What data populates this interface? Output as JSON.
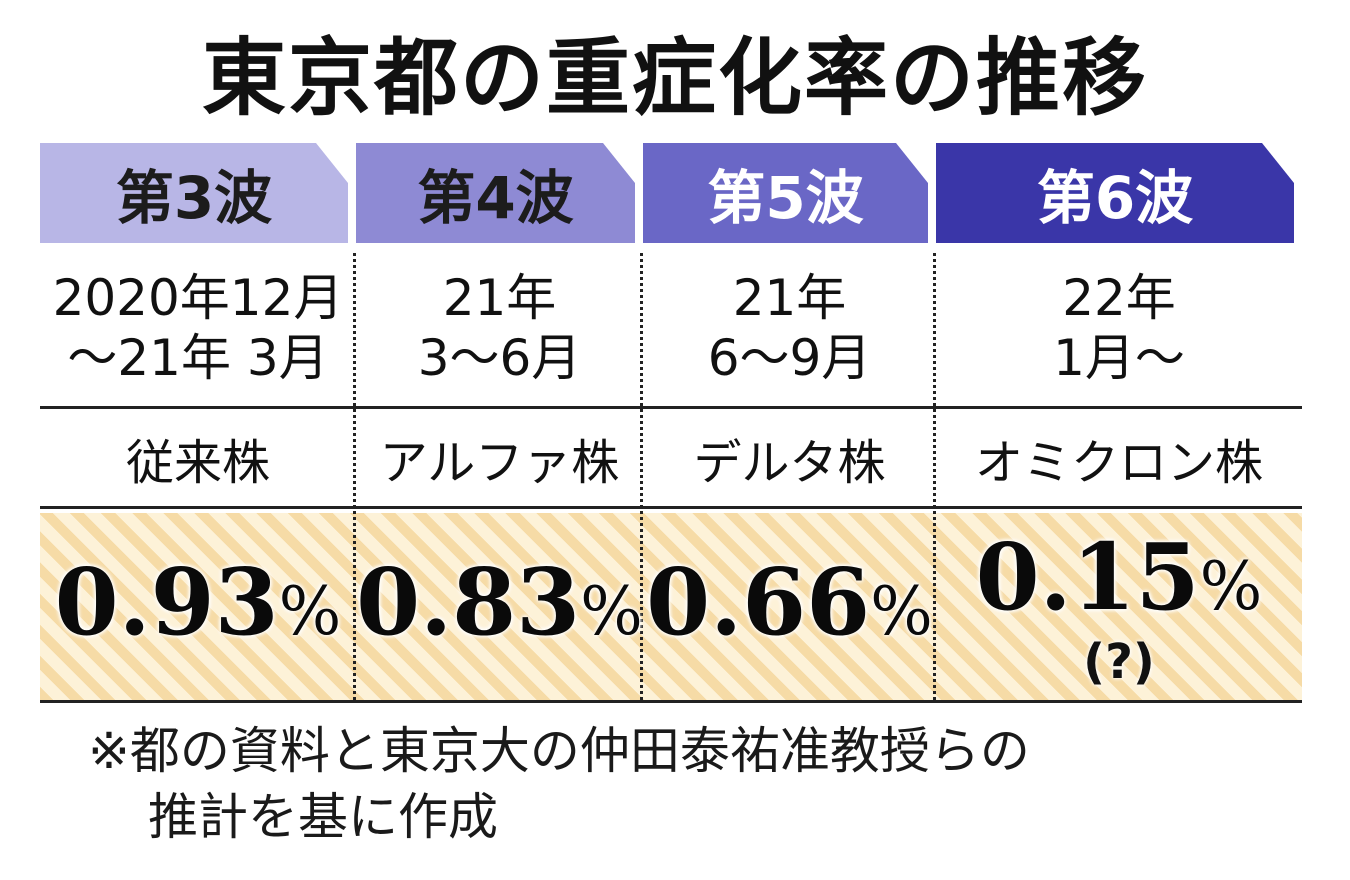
{
  "title": "東京都の重症化率の推移",
  "chart_data": {
    "type": "table",
    "columns": [
      {
        "wave": "第3波",
        "period_line1": "2020年12月",
        "period_line2": "～21年 3月",
        "variant": "従来株",
        "value": 0.93,
        "value_text": "0.93",
        "unit": "%",
        "note": "",
        "header_color": "#b8b6e6",
        "header_text_color": "#1c1c1c"
      },
      {
        "wave": "第4波",
        "period_line1": "21年",
        "period_line2": "3～6月",
        "variant": "アルファ株",
        "value": 0.83,
        "value_text": "0.83",
        "unit": "%",
        "note": "",
        "header_color": "#8e8ad4",
        "header_text_color": "#1c1c1c"
      },
      {
        "wave": "第5波",
        "period_line1": "21年",
        "period_line2": "6～9月",
        "variant": "デルタ株",
        "value": 0.66,
        "value_text": "0.66",
        "unit": "%",
        "note": "",
        "header_color": "#6a67c6",
        "header_text_color": "#ffffff"
      },
      {
        "wave": "第6波",
        "period_line1": "22年",
        "period_line2": "1月～",
        "variant": "オミクロン株",
        "value": 0.15,
        "value_text": "0.15",
        "unit": "%",
        "note": "(?)",
        "header_color": "#3a36a8",
        "header_text_color": "#ffffff"
      }
    ],
    "stripe_colors": [
      "#f6dba6",
      "#fdf2d8"
    ]
  },
  "footnote": {
    "line1": "※都の資料と東京大の仲田泰祐准教授らの",
    "line2": "推計を基に作成"
  }
}
